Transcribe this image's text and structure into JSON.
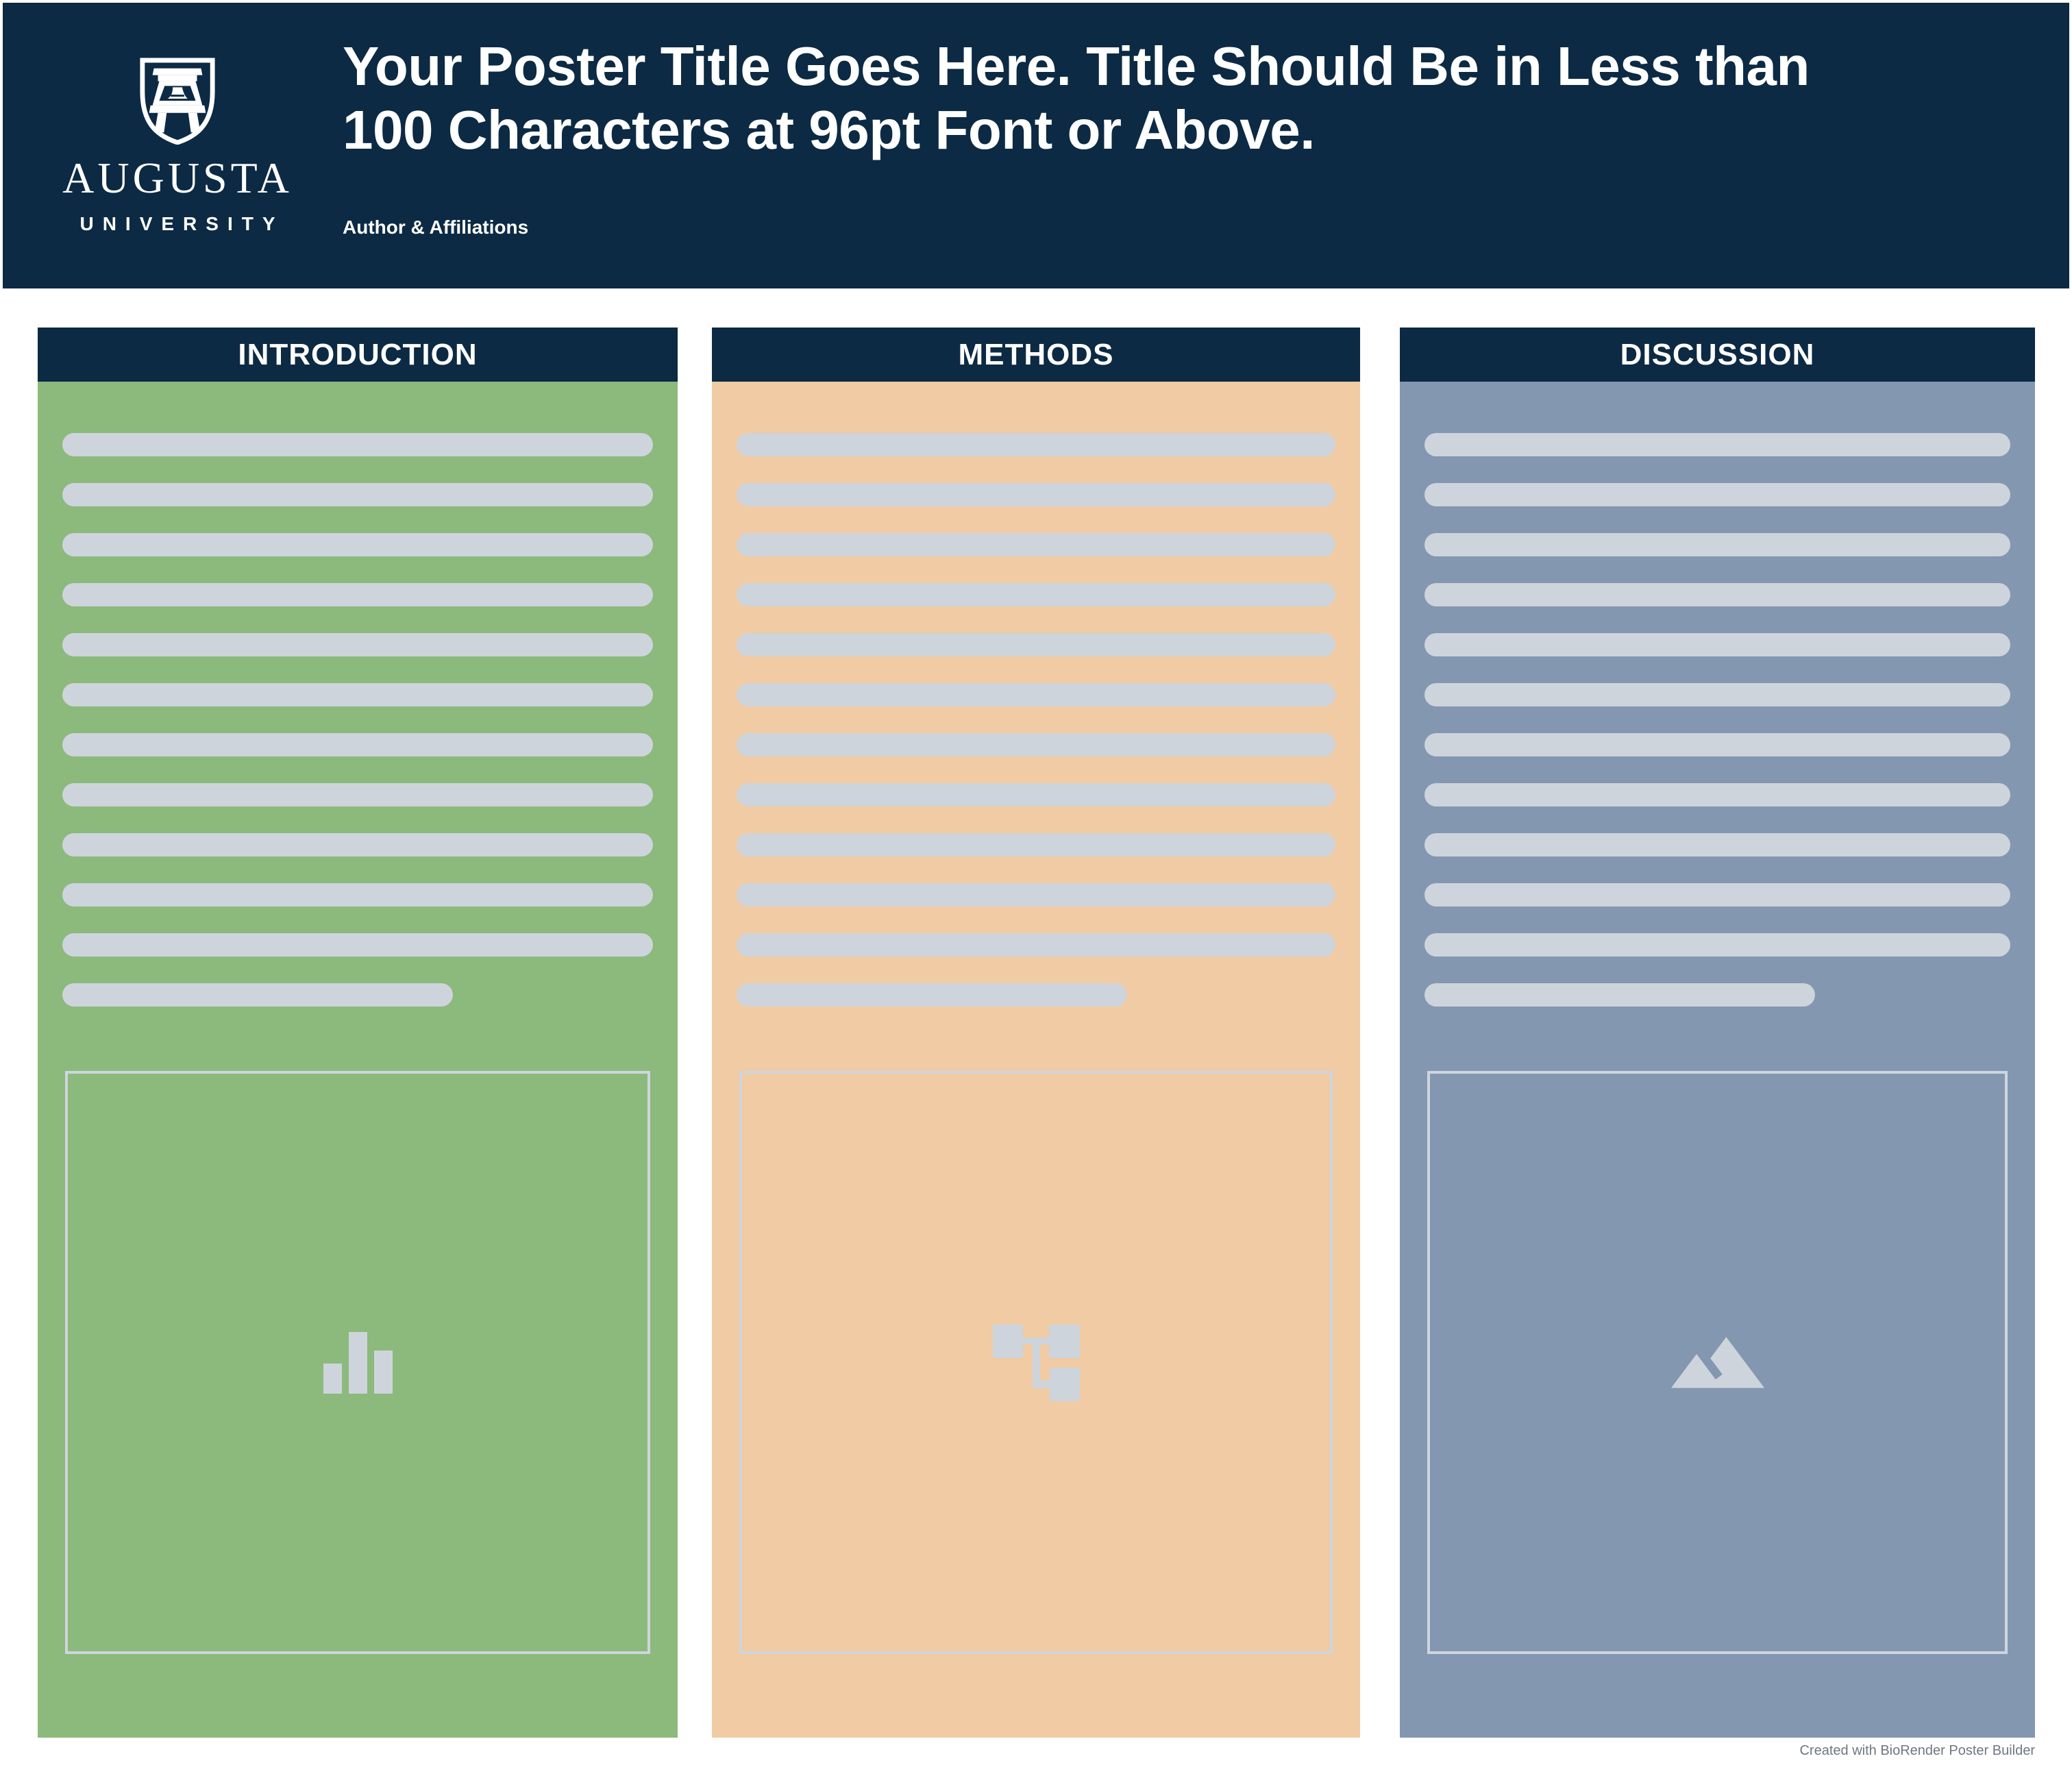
{
  "header": {
    "logo": {
      "institution": "AUGUSTA",
      "subtitle": "UNIVERSITY",
      "shield_icon": "augusta-arch-shield-icon"
    },
    "title_line1": "Your Poster Title Goes Here. Title Should Be in Less than",
    "title_line2": "100 Characters at 96pt Font or Above.",
    "authors": "Author & Affiliations"
  },
  "columns": [
    {
      "title": "INTRODUCTION",
      "bg": "#8cb97c",
      "placeholder_icon": "bar-chart-icon",
      "placeholder_lines": {
        "full": 11,
        "short": 1
      }
    },
    {
      "title": "METHODS",
      "bg": "#f0cba3",
      "placeholder_icon": "flowchart-icon",
      "placeholder_lines": {
        "full": 11,
        "short": 1
      }
    },
    {
      "title": "DISCUSSION",
      "bg": "#8497b1",
      "placeholder_icon": "mountain-image-icon",
      "placeholder_lines": {
        "full": 11,
        "short": 1
      }
    }
  ],
  "footer": {
    "attribution": "Created with BioRender Poster Builder"
  },
  "colors": {
    "header_navy": "#0c2a43",
    "placeholder_bar": "#ced4dc",
    "placeholder_border": "#cfd5de",
    "footer_text": "#6e7781"
  }
}
